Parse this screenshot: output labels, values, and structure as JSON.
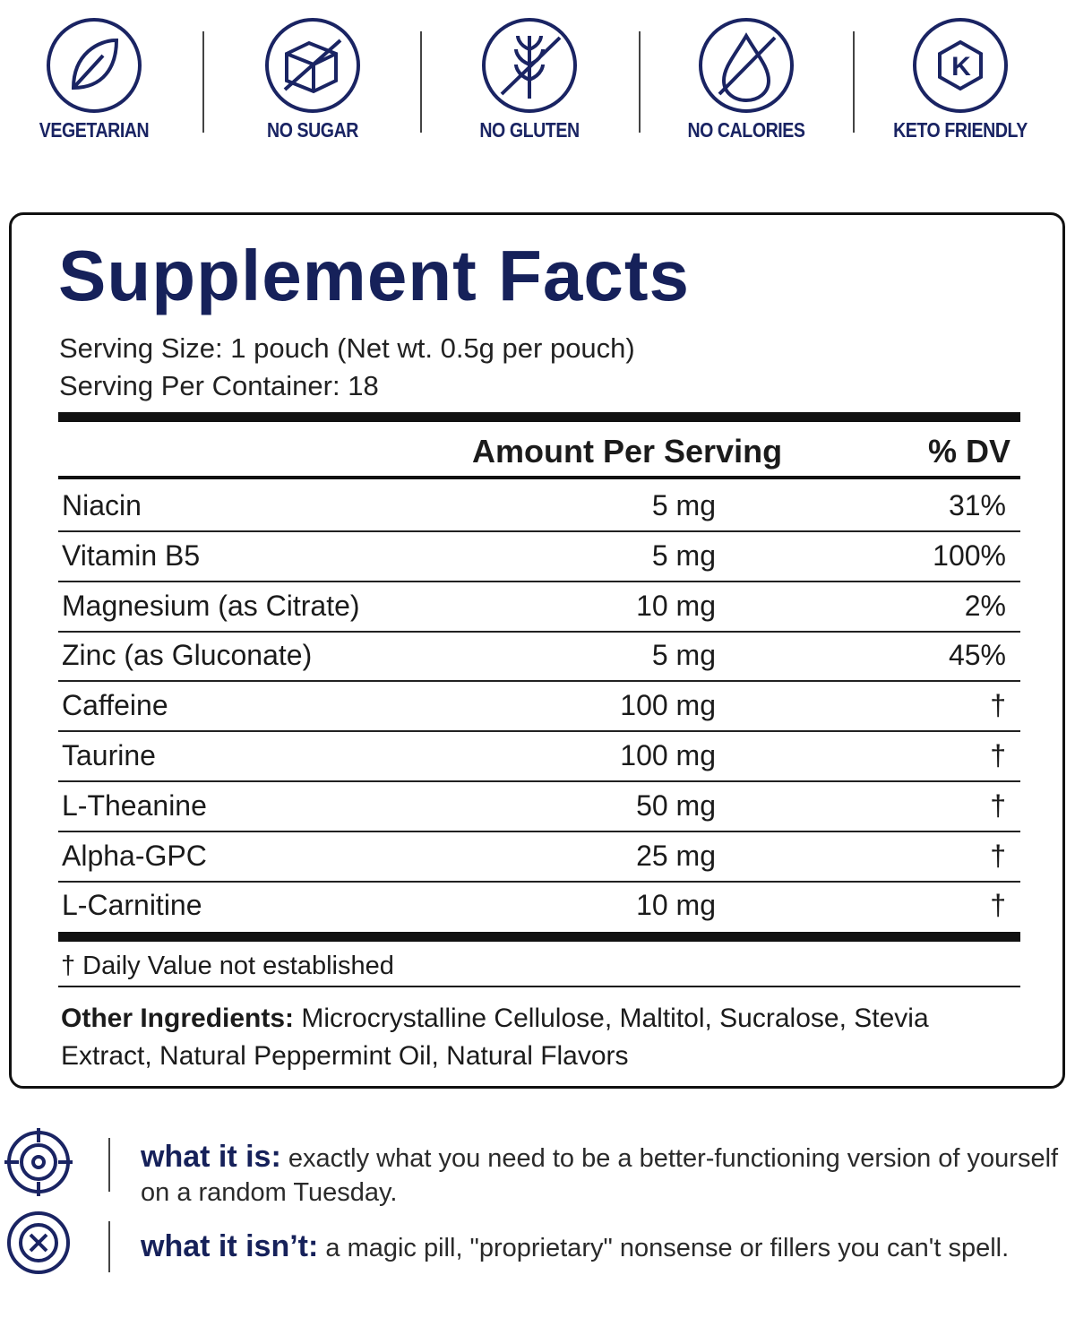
{
  "badges": [
    {
      "label": "VEGETARIAN"
    },
    {
      "label": "NO SUGAR"
    },
    {
      "label": "NO GLUTEN"
    },
    {
      "label": "NO CALORIES"
    },
    {
      "label": "KETO FRIENDLY",
      "icon_text": "K"
    }
  ],
  "facts": {
    "title": "Supplement Facts",
    "serving_size": "Serving Size: 1 pouch (Net wt. 0.5g per pouch)",
    "servings_per_container": "Serving Per Container: 18",
    "header": {
      "amount": "Amount Per Serving",
      "dv": "% DV"
    },
    "rows": [
      [
        "Niacin",
        "5 mg",
        "31%"
      ],
      [
        "Vitamin B5",
        "5 mg",
        "100%"
      ],
      [
        "Magnesium (as Citrate)",
        "10 mg",
        "2%"
      ],
      [
        "Zinc (as Gluconate)",
        "5 mg",
        "45%"
      ],
      [
        "Caffeine",
        "100 mg",
        "†"
      ],
      [
        "Taurine",
        "100 mg",
        "†"
      ],
      [
        "L-Theanine",
        "50 mg",
        "†"
      ],
      [
        "Alpha-GPC",
        "25 mg",
        "†"
      ],
      [
        "L-Carnitine",
        "10 mg",
        "†"
      ]
    ],
    "footnote": "† Daily Value not established",
    "other_ingredients": {
      "label": "Other Ingredients:",
      "text": "Microcrystalline Cellulose, Maltitol, Sucralose, Stevia Extract, Natural Peppermint Oil, Natural Flavors"
    }
  },
  "statements": [
    {
      "label": "what it is:",
      "text": "exactly what you need to be a better-functioning version of yourself on a random Tuesday."
    },
    {
      "label": "what it isn’t:",
      "text": "a magic pill, \"proprietary\" nonsense or fillers you can't spell."
    }
  ]
}
